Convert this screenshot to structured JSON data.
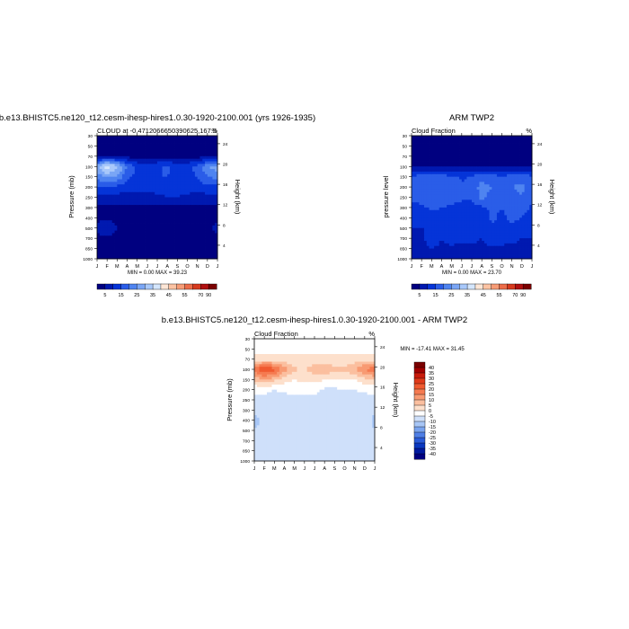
{
  "chart_data": [
    {
      "type": "heatmap",
      "title": "b.e13.BHISTC5.ne120_t12.cesm-ihesp-hires1.0.30-1920-2100.001 (yrs 1926-1935)",
      "left_string": "CLOUD at -0.4712066650390625,167.5",
      "right_string": "%",
      "xlabel": "",
      "ylabel": "Pressure (mb)",
      "y2label": "Height (km)",
      "x_ticks": [
        "J",
        "F",
        "M",
        "A",
        "M",
        "J",
        "J",
        "A",
        "S",
        "O",
        "N",
        "D",
        "J"
      ],
      "y_ticks": [
        "30",
        "50",
        "70",
        "100",
        "150",
        "200",
        "250",
        "300",
        "400",
        "500",
        "700",
        "850",
        "1000"
      ],
      "y2_ticks": [
        "24",
        "20",
        "16",
        "12",
        "8",
        "4"
      ],
      "min_max": "MIN =   0.00 MAX =  39.23",
      "colorbar_levels": [
        "5",
        "15",
        "25",
        "35",
        "45",
        "55",
        "70",
        "90"
      ],
      "colors": [
        "#000080",
        "#0019b0",
        "#0534d8",
        "#2a5de8",
        "#4f84f0",
        "#7aa6f5",
        "#a8c8fa",
        "#d4e6fd",
        "#fde6d6",
        "#fcc3a3",
        "#f79c76",
        "#ec6c48",
        "#d63a1e",
        "#b01010",
        "#7a0000"
      ],
      "months_grid": [
        0,
        1,
        2,
        3,
        4,
        5,
        6,
        7,
        8,
        9,
        10,
        11,
        12
      ],
      "pressure_grid": [
        30,
        50,
        70,
        100,
        150,
        200,
        250,
        300,
        400,
        500,
        700,
        850,
        1000
      ],
      "values": [
        [
          1,
          1,
          1,
          1,
          1,
          1,
          1,
          1,
          1,
          1,
          1,
          1,
          1
        ],
        [
          2,
          2,
          2,
          2,
          2,
          2,
          2,
          2,
          2,
          2,
          2,
          2,
          2
        ],
        [
          4,
          4,
          4,
          3,
          3,
          3,
          3,
          3,
          3,
          3,
          3,
          3,
          4
        ],
        [
          28,
          39,
          32,
          20,
          14,
          12,
          14,
          16,
          12,
          13,
          17,
          25,
          28
        ],
        [
          22,
          26,
          24,
          16,
          14,
          14,
          15,
          15,
          14,
          14,
          15,
          20,
          22
        ],
        [
          14,
          16,
          14,
          12,
          12,
          12,
          12,
          12,
          12,
          12,
          12,
          14,
          14
        ],
        [
          8,
          9,
          8,
          8,
          8,
          8,
          9,
          10,
          10,
          9,
          8,
          8,
          8
        ],
        [
          4,
          4,
          4,
          4,
          4,
          4,
          4,
          4,
          4,
          4,
          4,
          4,
          4
        ],
        [
          4,
          4,
          4,
          4,
          4,
          4,
          4,
          4,
          4,
          4,
          4,
          4,
          4
        ],
        [
          6,
          8,
          5,
          4,
          4,
          4,
          4,
          4,
          4,
          4,
          4,
          4,
          6
        ],
        [
          4,
          4,
          4,
          4,
          4,
          4,
          4,
          4,
          4,
          4,
          4,
          4,
          4
        ],
        [
          3,
          3,
          3,
          3,
          3,
          3,
          3,
          3,
          3,
          3,
          3,
          3,
          3
        ],
        [
          2,
          2,
          2,
          2,
          2,
          2,
          2,
          2,
          2,
          2,
          2,
          2,
          2
        ]
      ]
    },
    {
      "type": "heatmap",
      "title": "ARM TWP2",
      "left_string": "Cloud Fraction",
      "right_string": "%",
      "ylabel": "pressure level",
      "y2label": "Height (km)",
      "x_ticks": [
        "J",
        "F",
        "M",
        "A",
        "M",
        "J",
        "J",
        "A",
        "S",
        "O",
        "N",
        "D",
        "J"
      ],
      "y_ticks": [
        "30",
        "50",
        "70",
        "100",
        "150",
        "200",
        "250",
        "300",
        "400",
        "500",
        "700",
        "850",
        "1000"
      ],
      "y2_ticks": [
        "24",
        "20",
        "16",
        "12",
        "8",
        "4"
      ],
      "min_max": "MIN =   0.00 MAX =  23.70",
      "colorbar_levels": [
        "5",
        "15",
        "25",
        "35",
        "45",
        "55",
        "70",
        "90"
      ],
      "months_grid": [
        0,
        1,
        2,
        3,
        4,
        5,
        6,
        7,
        8,
        9,
        10,
        11,
        12
      ],
      "pressure_grid": [
        30,
        50,
        70,
        100,
        150,
        200,
        250,
        300,
        400,
        500,
        700,
        850,
        1000
      ],
      "values": [
        [
          1,
          1,
          1,
          1,
          1,
          1,
          1,
          1,
          1,
          1,
          1,
          1,
          1
        ],
        [
          1,
          1,
          1,
          1,
          1,
          1,
          1,
          1,
          1,
          1,
          1,
          1,
          1
        ],
        [
          2,
          2,
          2,
          2,
          2,
          2,
          2,
          2,
          2,
          2,
          2,
          2,
          2
        ],
        [
          4,
          4,
          4,
          4,
          4,
          4,
          4,
          4,
          4,
          4,
          4,
          4,
          4
        ],
        [
          16,
          17,
          18,
          17,
          16,
          14,
          16,
          18,
          17,
          16,
          17,
          18,
          16
        ],
        [
          18,
          19,
          20,
          19,
          18,
          16,
          17,
          22,
          20,
          18,
          20,
          21,
          18
        ],
        [
          16,
          17,
          18,
          18,
          17,
          16,
          16,
          22,
          18,
          17,
          18,
          20,
          16
        ],
        [
          14,
          14,
          16,
          15,
          14,
          13,
          13,
          14,
          16,
          15,
          17,
          18,
          14
        ],
        [
          12,
          12,
          13,
          14,
          13,
          12,
          12,
          12,
          16,
          14,
          16,
          15,
          12
        ],
        [
          10,
          10,
          11,
          10,
          10,
          10,
          10,
          10,
          14,
          12,
          14,
          12,
          10
        ],
        [
          10,
          8,
          14,
          10,
          12,
          11,
          11,
          10,
          13,
          12,
          11,
          10,
          10
        ],
        [
          9,
          9,
          10,
          9,
          9,
          9,
          9,
          9,
          9,
          9,
          9,
          9,
          9
        ],
        [
          8,
          8,
          8,
          8,
          8,
          8,
          8,
          8,
          8,
          8,
          8,
          8,
          8
        ]
      ]
    },
    {
      "type": "heatmap",
      "title": "b.e13.BHISTC5.ne120_t12.cesm-ihesp-hires1.0.30-1920-2100.001 - ARM TWP2",
      "left_string": "Cloud Fraction",
      "right_string": "%",
      "ylabel": "Pressure (mb)",
      "y2label": "Height (km)",
      "x_ticks": [
        "J",
        "F",
        "M",
        "A",
        "M",
        "J",
        "J",
        "A",
        "S",
        "O",
        "N",
        "D",
        "J"
      ],
      "y_ticks": [
        "30",
        "50",
        "70",
        "100",
        "150",
        "200",
        "250",
        "300",
        "400",
        "500",
        "700",
        "850",
        "1000"
      ],
      "y2_ticks": [
        "24",
        "20",
        "16",
        "12",
        "8",
        "4"
      ],
      "min_max": "MIN = -17.41 MAX =  31.45",
      "colorbar_levels": [
        "40",
        "35",
        "30",
        "25",
        "20",
        "15",
        "10",
        "5",
        "0",
        "-5",
        "-10",
        "-15",
        "-20",
        "-25",
        "-30",
        "-35",
        "-40"
      ],
      "diff_colors": [
        "#7a0000",
        "#a00000",
        "#c81a0a",
        "#e03a1a",
        "#f05a30",
        "#f57a50",
        "#f89a72",
        "#fbbf9f",
        "#fde0cc",
        "#ffffff",
        "#cfe0fa",
        "#a8c6f6",
        "#7aa4ef",
        "#4f7fe6",
        "#2a5bd8",
        "#0a38c0",
        "#001aa0",
        "#000080"
      ],
      "months_grid": [
        0,
        1,
        2,
        3,
        4,
        5,
        6,
        7,
        8,
        9,
        10,
        11,
        12
      ],
      "pressure_grid": [
        30,
        50,
        70,
        100,
        150,
        200,
        250,
        300,
        400,
        500,
        700,
        850,
        1000
      ],
      "values": [
        [
          -2,
          -2,
          -2,
          -2,
          -2,
          -2,
          -2,
          -2,
          -2,
          -2,
          -2,
          -2,
          -2
        ],
        [
          -2,
          -2,
          -2,
          -2,
          -2,
          -2,
          -2,
          -2,
          -2,
          -2,
          -2,
          -2,
          -2
        ],
        [
          2,
          2,
          2,
          2,
          2,
          2,
          2,
          2,
          2,
          2,
          2,
          2,
          2
        ],
        [
          18,
          26,
          22,
          12,
          6,
          4,
          8,
          10,
          6,
          6,
          10,
          16,
          18
        ],
        [
          6,
          10,
          7,
          2,
          0,
          2,
          2,
          0,
          0,
          0,
          0,
          4,
          6
        ],
        [
          -4,
          -4,
          -5,
          -4,
          -4,
          -4,
          -4,
          -6,
          -6,
          -5,
          -5,
          -4,
          -4
        ],
        [
          -6,
          -6,
          -7,
          -7,
          -6,
          -6,
          -6,
          -8,
          -7,
          -6,
          -7,
          -7,
          -6
        ],
        [
          -8,
          -6,
          -7,
          -6,
          -6,
          -5,
          -5,
          -5,
          -6,
          -6,
          -8,
          -8,
          -8
        ],
        [
          -12,
          -8,
          -6,
          -6,
          -6,
          -6,
          -6,
          -6,
          -6,
          -6,
          -6,
          -6,
          -12
        ],
        [
          -10,
          -8,
          -6,
          -6,
          -5,
          -5,
          -5,
          -5,
          -5,
          -5,
          -5,
          -5,
          -10
        ],
        [
          -6,
          -6,
          -6,
          -6,
          -6,
          -6,
          -6,
          -6,
          -6,
          -6,
          -6,
          -6,
          -6
        ],
        [
          -6,
          -6,
          -6,
          -6,
          -6,
          -6,
          -6,
          -6,
          -6,
          -6,
          -6,
          -6,
          -6
        ],
        [
          -6,
          -6,
          -6,
          -6,
          -6,
          -6,
          -6,
          -6,
          -6,
          -6,
          -6,
          -6,
          -6
        ]
      ]
    }
  ]
}
